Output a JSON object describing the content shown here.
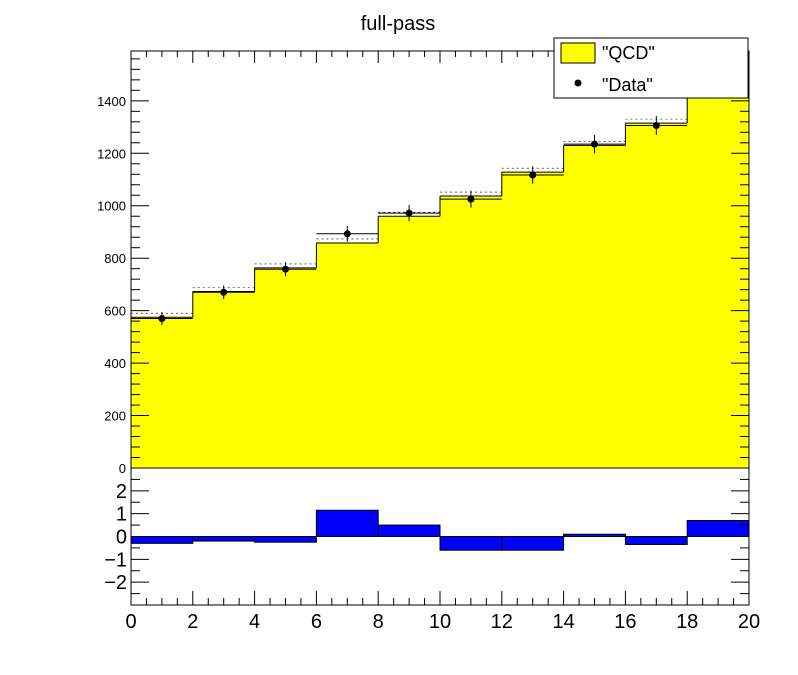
{
  "title": "full-pass",
  "colors": {
    "qcd": "#ffff00",
    "ratio": "#0000ff",
    "data": "#000000",
    "frame": "#000000"
  },
  "chart_data": [
    {
      "type": "bar",
      "panel": "main",
      "title": "full-pass",
      "x_edges": [
        0,
        2,
        4,
        6,
        8,
        10,
        12,
        14,
        16,
        18,
        20
      ],
      "xlim": [
        0,
        20
      ],
      "ylim": [
        0,
        1590
      ],
      "y_ticks": [
        0,
        200,
        400,
        600,
        800,
        1000,
        1200,
        1400
      ],
      "y_tick_labels": [
        "0",
        "200",
        "400",
        "600",
        "800",
        "1000",
        "1200",
        "1400"
      ],
      "legend_position": "top-right",
      "series": [
        {
          "name": "\"QCD\"",
          "style": "filled-histogram",
          "values": [
            575,
            673,
            763,
            858,
            960,
            1037,
            1128,
            1230,
            1315,
            1418
          ]
        },
        {
          "name": "\"Data\"",
          "style": "points-with-errors",
          "x": [
            1,
            3,
            5,
            7,
            9,
            11,
            13,
            15,
            17,
            19
          ],
          "values": [
            570,
            670,
            758,
            893,
            972,
            1025,
            1117,
            1235,
            1306,
            1447
          ],
          "errors": [
            24,
            26,
            27,
            30,
            31,
            32,
            33,
            35,
            36,
            38
          ]
        }
      ]
    },
    {
      "type": "bar",
      "panel": "ratio",
      "x_edges": [
        0,
        2,
        4,
        6,
        8,
        10,
        12,
        14,
        16,
        18,
        20
      ],
      "xlim": [
        0,
        20
      ],
      "ylim": [
        -3,
        3
      ],
      "y_ticks": [
        -2,
        -1,
        0,
        1,
        2
      ],
      "y_tick_labels": [
        "−2",
        "−1",
        "0",
        "1",
        "2"
      ],
      "x_ticks": [
        0,
        2,
        4,
        6,
        8,
        10,
        12,
        14,
        16,
        18,
        20
      ],
      "x_tick_labels": [
        "0",
        "2",
        "4",
        "6",
        "8",
        "10",
        "12",
        "14",
        "16",
        "18",
        "20"
      ],
      "series": [
        {
          "style": "filled-histogram",
          "values": [
            -0.3,
            -0.2,
            -0.25,
            1.15,
            0.5,
            -0.6,
            -0.6,
            0.1,
            -0.35,
            0.7
          ]
        }
      ]
    }
  ]
}
